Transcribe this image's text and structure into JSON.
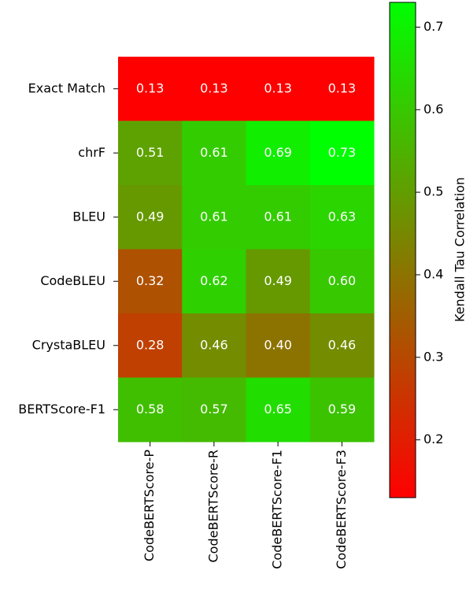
{
  "chart_data": {
    "type": "heatmap",
    "x_categories": [
      "CodeBERTScore-P",
      "CodeBERTScore-R",
      "CodeBERTScore-F1",
      "CodeBERTScore-F3"
    ],
    "y_categories": [
      "Exact Match",
      "chrF",
      "BLEU",
      "CodeBLEU",
      "CrystaBLEU",
      "BERTScore-F1"
    ],
    "values": [
      [
        0.13,
        0.13,
        0.13,
        0.13
      ],
      [
        0.51,
        0.61,
        0.69,
        0.73
      ],
      [
        0.49,
        0.61,
        0.61,
        0.63
      ],
      [
        0.32,
        0.62,
        0.49,
        0.6
      ],
      [
        0.28,
        0.46,
        0.4,
        0.46
      ],
      [
        0.58,
        0.57,
        0.65,
        0.59
      ]
    ],
    "value_labels": [
      [
        "0.13",
        "0.13",
        "0.13",
        "0.13"
      ],
      [
        "0.51",
        "0.61",
        "0.69",
        "0.73"
      ],
      [
        "0.49",
        "0.61",
        "0.61",
        "0.63"
      ],
      [
        "0.32",
        "0.62",
        "0.49",
        "0.60"
      ],
      [
        "0.28",
        "0.46",
        "0.40",
        "0.46"
      ],
      [
        "0.58",
        "0.57",
        "0.65",
        "0.59"
      ]
    ],
    "colormap": [
      "#ff0000",
      "#00ff00"
    ],
    "clim": [
      0.13,
      0.73
    ],
    "colorbar_ticks": [
      0.2,
      0.3,
      0.4,
      0.5,
      0.6,
      0.7
    ],
    "colorbar_label": "Kendall Tau Correlation"
  }
}
